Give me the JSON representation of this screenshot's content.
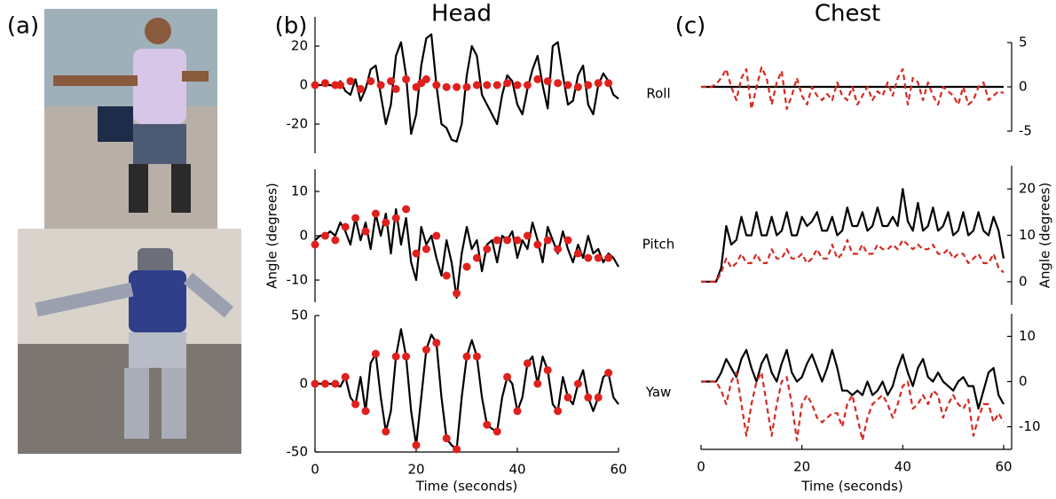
{
  "figure_a": {
    "panel_label": "(a)"
  },
  "chart_data": [
    {
      "type": "line",
      "panel_label": "(b)",
      "title": "Head",
      "label": "Roll",
      "xlim": [
        0,
        60
      ],
      "ylim": [
        -35,
        35
      ],
      "yticks": [
        -20,
        0,
        20
      ],
      "x": [
        0,
        1,
        2,
        3,
        4,
        5,
        6,
        7,
        8,
        9,
        10,
        11,
        12,
        13,
        14,
        15,
        16,
        17,
        18,
        19,
        20,
        21,
        22,
        23,
        24,
        25,
        26,
        27,
        28,
        29,
        30,
        31,
        32,
        33,
        34,
        35,
        36,
        37,
        38,
        39,
        40,
        41,
        42,
        43,
        44,
        45,
        46,
        47,
        48,
        49,
        50,
        51,
        52,
        53,
        54,
        55,
        56,
        57,
        58,
        59,
        60
      ],
      "series": [
        {
          "color": "#000000",
          "style": "solid",
          "values": [
            0,
            0,
            0,
            0,
            -1,
            2,
            -3,
            -5,
            3,
            -8,
            -2,
            8,
            10,
            -5,
            -20,
            -10,
            15,
            22,
            5,
            -25,
            -15,
            10,
            24,
            26,
            0,
            -20,
            -22,
            -28,
            -29,
            -20,
            5,
            20,
            15,
            -5,
            -10,
            -15,
            -20,
            -5,
            5,
            2,
            -10,
            -15,
            -2,
            8,
            15,
            0,
            -12,
            20,
            22,
            5,
            -10,
            -8,
            5,
            10,
            -10,
            -15,
            0,
            6,
            2,
            -5,
            -7
          ]
        },
        {
          "color": "#e0201c",
          "style": "dots",
          "x": [
            0,
            2,
            4,
            5,
            7,
            9,
            11,
            13,
            15,
            16,
            18,
            20,
            21,
            22,
            24,
            26,
            28,
            30,
            32,
            34,
            36,
            38,
            40,
            42,
            44,
            46,
            48,
            50,
            52,
            54,
            56,
            58
          ],
          "values": [
            0,
            1,
            0,
            0,
            2,
            -2,
            2,
            0,
            2,
            -2,
            3,
            -1,
            1,
            3,
            0,
            -1,
            -1,
            -1,
            0,
            0,
            0,
            1,
            0,
            0,
            3,
            2,
            1,
            0,
            -1,
            0,
            1,
            1
          ]
        }
      ]
    },
    {
      "type": "line",
      "label": "Pitch",
      "ylabel": "Angle (degrees)",
      "xlim": [
        0,
        60
      ],
      "ylim": [
        -15,
        15
      ],
      "yticks": [
        -10,
        0,
        10
      ],
      "x": [
        0,
        1,
        2,
        3,
        4,
        5,
        6,
        7,
        8,
        9,
        10,
        11,
        12,
        13,
        14,
        15,
        16,
        17,
        18,
        19,
        20,
        21,
        22,
        23,
        24,
        25,
        26,
        27,
        28,
        29,
        30,
        31,
        32,
        33,
        34,
        35,
        36,
        37,
        38,
        39,
        40,
        41,
        42,
        43,
        44,
        45,
        46,
        47,
        48,
        49,
        50,
        51,
        52,
        53,
        54,
        55,
        56,
        57,
        58,
        59,
        60
      ],
      "series": [
        {
          "color": "#000000",
          "style": "solid",
          "values": [
            -1,
            0,
            0,
            1,
            0,
            3,
            1,
            -2,
            4,
            -1,
            3,
            -3,
            5,
            0,
            5,
            -4,
            6,
            -2,
            4,
            -6,
            -10,
            2,
            -2,
            0,
            -5,
            -9,
            -1,
            -6,
            -14,
            -4,
            2,
            -3,
            -1,
            -8,
            -2,
            -1,
            -6,
            0,
            -1,
            1,
            -5,
            -1,
            -3,
            3,
            -1,
            -6,
            2,
            -1,
            -4,
            1,
            -3,
            -6,
            -2,
            -5,
            0,
            -4,
            -3,
            -6,
            -4,
            -5,
            -7
          ]
        },
        {
          "color": "#e0201c",
          "style": "dots",
          "x": [
            0,
            2,
            4,
            6,
            8,
            10,
            12,
            14,
            16,
            18,
            20,
            22,
            24,
            26,
            28,
            30,
            32,
            34,
            36,
            38,
            40,
            42,
            44,
            46,
            48,
            50,
            52,
            54,
            56,
            58
          ],
          "values": [
            -2,
            0,
            -1,
            2,
            4,
            1,
            5,
            3,
            4,
            6,
            -4,
            -3,
            0,
            -9,
            -13,
            -7,
            -5,
            -3,
            -1,
            -1,
            -1,
            0,
            -2,
            -1,
            -3,
            -1,
            -4,
            -5,
            -5,
            -5
          ]
        }
      ]
    },
    {
      "type": "line",
      "label": "Yaw",
      "xlabel": "Time (seconds)",
      "xlim": [
        0,
        60
      ],
      "xticks": [
        0,
        20,
        40,
        60
      ],
      "ylim": [
        -50,
        50
      ],
      "yticks": [
        -50,
        0,
        50
      ],
      "x": [
        0,
        1,
        2,
        3,
        4,
        5,
        6,
        7,
        8,
        9,
        10,
        11,
        12,
        13,
        14,
        15,
        16,
        17,
        18,
        19,
        20,
        21,
        22,
        23,
        24,
        25,
        26,
        27,
        28,
        29,
        30,
        31,
        32,
        33,
        34,
        35,
        36,
        37,
        38,
        39,
        40,
        41,
        42,
        43,
        44,
        45,
        46,
        47,
        48,
        49,
        50,
        51,
        52,
        53,
        54,
        55,
        56,
        57,
        58,
        59,
        60
      ],
      "series": [
        {
          "color": "#000000",
          "style": "solid",
          "values": [
            0,
            0,
            0,
            0,
            -1,
            -2,
            5,
            -10,
            -15,
            5,
            -20,
            15,
            22,
            -10,
            -35,
            -20,
            20,
            40,
            20,
            -20,
            -45,
            -10,
            25,
            36,
            30,
            -10,
            -40,
            -45,
            -48,
            -10,
            20,
            32,
            20,
            -10,
            -30,
            -33,
            -35,
            -10,
            5,
            0,
            -20,
            -10,
            15,
            20,
            0,
            20,
            10,
            -15,
            -20,
            5,
            -10,
            -15,
            0,
            10,
            -10,
            -20,
            -10,
            5,
            8,
            -10,
            -15
          ]
        },
        {
          "color": "#e0201c",
          "style": "dots",
          "x": [
            0,
            2,
            4,
            6,
            8,
            10,
            12,
            14,
            16,
            18,
            20,
            22,
            24,
            26,
            28,
            30,
            32,
            34,
            36,
            38,
            40,
            42,
            44,
            46,
            48,
            50,
            52,
            54,
            56,
            58
          ],
          "values": [
            0,
            0,
            0,
            5,
            -15,
            -20,
            22,
            -35,
            20,
            20,
            -45,
            25,
            30,
            -40,
            -48,
            20,
            20,
            -30,
            -35,
            5,
            -20,
            15,
            0,
            10,
            -20,
            -10,
            0,
            -10,
            -10,
            8
          ]
        }
      ]
    },
    {
      "type": "line",
      "panel_label": "(c)",
      "title": "Chest",
      "xlim": [
        0,
        60
      ],
      "ylim": [
        -5,
        5
      ],
      "yticks": [
        -5,
        0,
        5
      ],
      "x": [
        0,
        1,
        2,
        3,
        4,
        5,
        6,
        7,
        8,
        9,
        10,
        11,
        12,
        13,
        14,
        15,
        16,
        17,
        18,
        19,
        20,
        21,
        22,
        23,
        24,
        25,
        26,
        27,
        28,
        29,
        30,
        31,
        32,
        33,
        34,
        35,
        36,
        37,
        38,
        39,
        40,
        41,
        42,
        43,
        44,
        45,
        46,
        47,
        48,
        49,
        50,
        51,
        52,
        53,
        54,
        55,
        56,
        57,
        58,
        59,
        60
      ],
      "series": [
        {
          "color": "#000000",
          "style": "solid",
          "values": [
            0,
            0,
            0,
            0,
            0,
            0,
            0,
            0,
            0,
            0,
            0,
            0,
            0,
            0,
            0,
            0,
            0,
            0,
            0,
            0,
            0,
            0,
            0,
            0,
            0,
            0,
            0,
            0,
            0,
            0,
            0,
            0,
            0,
            0,
            0,
            0,
            0,
            0,
            0,
            0,
            0,
            0,
            0,
            0,
            0,
            0,
            0,
            0,
            0,
            0,
            0,
            0,
            0,
            0,
            0,
            0,
            0,
            0,
            0,
            0,
            0
          ]
        },
        {
          "color": "#d42a22",
          "style": "dashed",
          "values": [
            0,
            0,
            0,
            0.3,
            1,
            2,
            0,
            -1.5,
            1,
            2,
            -2.5,
            0,
            2.2,
            1,
            -2,
            0.5,
            1.8,
            -2.5,
            -1,
            1,
            -1,
            -2,
            0,
            -1,
            -1.5,
            -0.8,
            -1.5,
            0.5,
            -1,
            -1.5,
            0,
            -2,
            -1,
            0,
            -1.5,
            -0.5,
            -1,
            0.5,
            -1,
            1,
            2,
            -2,
            1,
            0.5,
            -1.5,
            0.5,
            -1,
            -2,
            0,
            -0.5,
            -1,
            -2,
            0,
            -2,
            -1.5,
            0,
            0.5,
            -1.5,
            -1,
            -0.5,
            -0.7
          ]
        }
      ]
    },
    {
      "type": "line",
      "ylabel": "Angle (degrees)",
      "xlim": [
        0,
        60
      ],
      "ylim": [
        -5,
        25
      ],
      "yticks": [
        0,
        10,
        20
      ],
      "x": [
        0,
        1,
        2,
        3,
        4,
        5,
        6,
        7,
        8,
        9,
        10,
        11,
        12,
        13,
        14,
        15,
        16,
        17,
        18,
        19,
        20,
        21,
        22,
        23,
        24,
        25,
        26,
        27,
        28,
        29,
        30,
        31,
        32,
        33,
        34,
        35,
        36,
        37,
        38,
        39,
        40,
        41,
        42,
        43,
        44,
        45,
        46,
        47,
        48,
        49,
        50,
        51,
        52,
        53,
        54,
        55,
        56,
        57,
        58,
        59,
        60
      ],
      "series": [
        {
          "color": "#000000",
          "style": "solid",
          "values": [
            0,
            0,
            0,
            0,
            3,
            12,
            8,
            9,
            14,
            10,
            10,
            15,
            10,
            10,
            14,
            10,
            11,
            15,
            10,
            10,
            14,
            12,
            13,
            15,
            11,
            11,
            14,
            10,
            11,
            16,
            12,
            12,
            15,
            11,
            12,
            16,
            12,
            12,
            14,
            12,
            20,
            13,
            11,
            17,
            11,
            12,
            16,
            11,
            12,
            15,
            10,
            11,
            15,
            10,
            11,
            15,
            11,
            10,
            14,
            11,
            5
          ]
        },
        {
          "color": "#d42a22",
          "style": "dashed",
          "values": [
            0,
            0,
            0,
            0,
            2,
            5,
            3,
            4,
            6,
            4,
            4,
            6,
            4,
            4,
            7,
            5,
            5,
            7,
            5,
            5,
            6,
            4,
            5,
            7,
            5,
            5,
            8,
            5,
            6,
            9,
            6,
            6,
            8,
            6,
            6,
            8,
            7,
            7,
            8,
            7,
            9,
            8,
            7,
            8,
            7,
            7,
            8,
            6,
            6,
            7,
            5,
            6,
            6,
            4,
            5,
            6,
            4,
            4,
            6,
            3,
            2
          ]
        }
      ]
    },
    {
      "type": "line",
      "xlabel": "Time (seconds)",
      "xlim": [
        0,
        60
      ],
      "xticks": [
        0,
        20,
        40,
        60
      ],
      "ylim": [
        -15,
        15
      ],
      "yticks": [
        -10,
        0,
        10
      ],
      "x": [
        0,
        1,
        2,
        3,
        4,
        5,
        6,
        7,
        8,
        9,
        10,
        11,
        12,
        13,
        14,
        15,
        16,
        17,
        18,
        19,
        20,
        21,
        22,
        23,
        24,
        25,
        26,
        27,
        28,
        29,
        30,
        31,
        32,
        33,
        34,
        35,
        36,
        37,
        38,
        39,
        40,
        41,
        42,
        43,
        44,
        45,
        46,
        47,
        48,
        49,
        50,
        51,
        52,
        53,
        54,
        55,
        56,
        57,
        58,
        59,
        60
      ],
      "series": [
        {
          "color": "#000000",
          "style": "solid",
          "values": [
            0,
            0,
            0,
            0,
            2,
            5,
            3,
            1,
            5,
            7,
            3,
            0,
            4,
            6,
            2,
            0,
            4,
            7,
            2,
            0,
            1,
            4,
            6,
            3,
            0,
            3,
            7,
            3,
            -2,
            -2,
            -3,
            -2,
            -3,
            0,
            -3,
            -2,
            0,
            -3,
            -1,
            3,
            6,
            2,
            -1,
            3,
            5,
            1,
            0,
            2,
            0,
            -1,
            -2,
            0,
            1,
            -1,
            -1,
            -6,
            -2,
            2,
            3,
            -3,
            -5
          ]
        },
        {
          "color": "#d42a22",
          "style": "dashed",
          "values": [
            0,
            0,
            0,
            0,
            -2,
            -5,
            0,
            2,
            -5,
            -12,
            -5,
            0,
            2,
            -5,
            -12,
            -5,
            0,
            1,
            -5,
            -13,
            -5,
            -3,
            -5,
            -8,
            -9,
            -8,
            -7,
            -7,
            -10,
            -5,
            -3,
            -8,
            -13,
            -8,
            -5,
            -4,
            -3,
            -5,
            -8,
            -5,
            -1,
            0,
            -6,
            -5,
            -3,
            -5,
            -2,
            -3,
            -8,
            -5,
            -3,
            -5,
            -6,
            -4,
            -12,
            -8,
            -5,
            -5,
            -9,
            -7,
            -9
          ]
        }
      ]
    }
  ]
}
